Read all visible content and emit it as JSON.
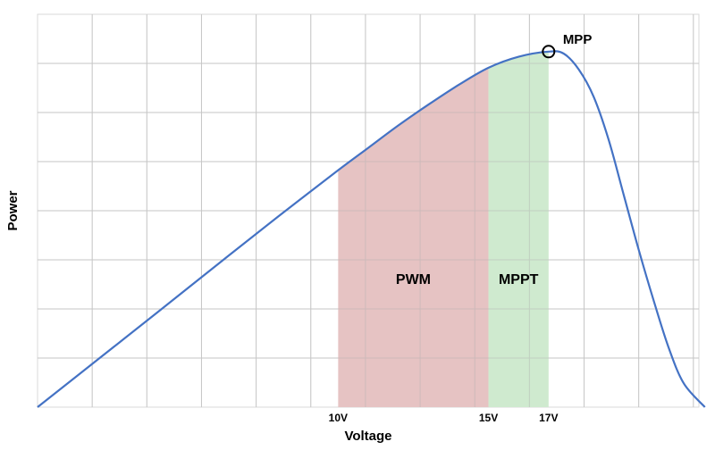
{
  "chart_data": {
    "type": "line",
    "title": "",
    "xlabel": "Voltage",
    "ylabel": "Power",
    "xlim": [
      0,
      22
    ],
    "ylim": [
      0,
      100
    ],
    "x_ticks": [
      {
        "value": 10,
        "label": "10V"
      },
      {
        "value": 15,
        "label": "15V"
      },
      {
        "value": 17,
        "label": "17V"
      }
    ],
    "grid": true,
    "grid_x_step": 1.818,
    "grid_y_step": 12.5,
    "series": [
      {
        "color": "#4472c4",
        "x": [
          0,
          2,
          4,
          6,
          8,
          10,
          11,
          12,
          13,
          14,
          15,
          16,
          17,
          17.5,
          18,
          18.5,
          19,
          19.5,
          20,
          20.5,
          21,
          21.5,
          22.2
        ],
        "y": [
          0,
          12.1,
          24.2,
          36.4,
          48.5,
          60.3,
          66.0,
          71.7,
          77.0,
          82.0,
          86.4,
          89.2,
          90.5,
          90.0,
          86.0,
          79.0,
          68.0,
          54.0,
          40.0,
          27.0,
          15.0,
          6.0,
          0
        ]
      }
    ],
    "regions": [
      {
        "label": "PWM",
        "x_start": 10,
        "x_end": 15,
        "color": "#e6c3c3"
      },
      {
        "label": "MPPT",
        "x_start": 15,
        "x_end": 17,
        "color": "#cfeacf"
      }
    ],
    "annotations": [
      {
        "label": "MPP",
        "x": 17,
        "y": 90.5
      }
    ]
  }
}
